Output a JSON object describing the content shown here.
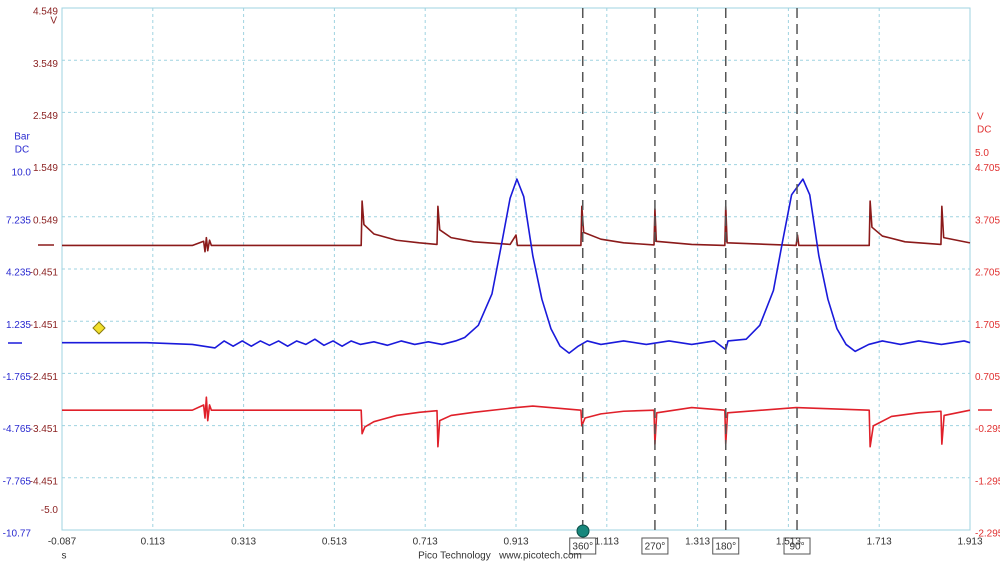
{
  "chart_data": {
    "type": "line",
    "xlabel": "s",
    "footer": "Pico Technology   www.picotech.com",
    "grid": true,
    "xlim": [
      -0.087,
      1.913
    ],
    "xticks": [
      -0.087,
      0.113,
      0.313,
      0.513,
      0.713,
      0.913,
      1.113,
      1.313,
      1.513,
      1.713,
      1.913
    ],
    "ylabel": "V",
    "ylim": [
      -5.451,
      4.549
    ],
    "yticks": [
      4.549,
      3.549,
      2.549,
      1.549,
      0.549,
      -0.451,
      -1.451,
      -2.451,
      -3.451,
      -4.451,
      {
        "value": -5,
        "label": "-5.0"
      }
    ],
    "y2label": "Bar",
    "y2coupling": "DC",
    "y2lim": [
      -10.765,
      19.235
    ],
    "y2ticks": [
      {
        "value": 10,
        "label": "10.0"
      },
      7.235,
      4.235,
      1.235,
      -1.765,
      -4.765,
      -7.765,
      {
        "value": -10.765,
        "label": "-10.77"
      }
    ],
    "y3label": "V",
    "y3coupling": "DC",
    "y3lim": [
      -2.295,
      7.705
    ],
    "y3ticks": [
      {
        "value": 5,
        "label": "5.0"
      },
      4.705,
      3.705,
      2.705,
      1.705,
      0.705,
      -0.295,
      -1.295,
      -2.295
    ],
    "cursors": [
      {
        "label": "360°",
        "x": 1.06
      },
      {
        "label": "270°",
        "x": 1.219
      },
      {
        "label": "180°",
        "x": 1.375
      },
      {
        "label": "90°",
        "x": 1.532
      }
    ],
    "series": [
      {
        "color": "#8b1a1a",
        "axis": "y",
        "x": [
          -0.087,
          0.2,
          0.225,
          0.228,
          0.231,
          0.234,
          0.238,
          0.242,
          0.4,
          0.572,
          0.574,
          0.578,
          0.6,
          0.65,
          0.7,
          0.739,
          0.741,
          0.745,
          0.77,
          0.82,
          0.9,
          0.913,
          0.916,
          1.056,
          1.058,
          1.062,
          1.1,
          1.15,
          1.217,
          1.219,
          1.222,
          1.3,
          1.373,
          1.375,
          1.378,
          1.53,
          1.533,
          1.536,
          1.691,
          1.693,
          1.697,
          1.72,
          1.77,
          1.849,
          1.851,
          1.855,
          1.913
        ],
        "values": [
          0,
          0,
          0.08,
          -0.12,
          0.15,
          -0.1,
          0.1,
          0,
          0,
          0,
          0.85,
          0.4,
          0.22,
          0.1,
          0.05,
          0.02,
          0.75,
          0.3,
          0.15,
          0.07,
          0.02,
          0.2,
          0,
          0,
          0.75,
          0.25,
          0.12,
          0.05,
          0.01,
          0.7,
          0.08,
          0.02,
          0,
          0.75,
          0.05,
          0,
          0.2,
          0,
          0,
          0.85,
          0.35,
          0.18,
          0.07,
          0.02,
          0.75,
          0.15,
          0.05
        ]
      },
      {
        "color": "#1a1adb",
        "axis": "y2",
        "x": [
          -0.087,
          0.1,
          0.2,
          0.25,
          0.27,
          0.29,
          0.31,
          0.33,
          0.35,
          0.37,
          0.39,
          0.41,
          0.43,
          0.45,
          0.47,
          0.49,
          0.51,
          0.53,
          0.55,
          0.57,
          0.6,
          0.63,
          0.66,
          0.69,
          0.72,
          0.75,
          0.78,
          0.8,
          0.83,
          0.86,
          0.88,
          0.9,
          0.915,
          0.93,
          0.95,
          0.97,
          0.99,
          1.01,
          1.03,
          1.05,
          1.07,
          1.1,
          1.15,
          1.2,
          1.25,
          1.3,
          1.35,
          1.375,
          1.38,
          1.42,
          1.45,
          1.48,
          1.5,
          1.52,
          1.545,
          1.56,
          1.58,
          1.6,
          1.62,
          1.64,
          1.66,
          1.69,
          1.72,
          1.76,
          1.8,
          1.85,
          1.9,
          1.913
        ],
        "values": [
          0,
          0,
          -0.1,
          -0.3,
          0.1,
          -0.2,
          0.1,
          -0.2,
          0.1,
          -0.15,
          0.1,
          -0.2,
          0.1,
          -0.1,
          0.2,
          -0.15,
          0.1,
          -0.2,
          0.1,
          -0.1,
          0.05,
          -0.15,
          0.1,
          -0.1,
          0.05,
          -0.1,
          0.1,
          0.3,
          1.0,
          2.8,
          5.5,
          8.3,
          9.4,
          8.4,
          5,
          2.5,
          0.8,
          -0.2,
          -0.6,
          -0.2,
          0.1,
          -0.1,
          0.1,
          -0.1,
          0.1,
          -0.1,
          0.1,
          -0.4,
          0.1,
          0.2,
          1.0,
          3.0,
          5.8,
          8.5,
          9.4,
          8.5,
          5,
          2.5,
          0.8,
          -0.1,
          -0.5,
          -0.1,
          0.1,
          -0.1,
          0.1,
          -0.1,
          0.1,
          0
        ]
      },
      {
        "color": "#e0202a",
        "axis": "y3",
        "x": [
          -0.087,
          0.2,
          0.225,
          0.228,
          0.231,
          0.234,
          0.238,
          0.242,
          0.572,
          0.574,
          0.58,
          0.6,
          0.65,
          0.7,
          0.739,
          0.741,
          0.745,
          0.77,
          0.82,
          0.913,
          0.95,
          1.056,
          1.058,
          1.065,
          1.1,
          1.15,
          1.217,
          1.219,
          1.223,
          1.3,
          1.373,
          1.375,
          1.379,
          1.53,
          1.691,
          1.693,
          1.7,
          1.74,
          1.8,
          1.849,
          1.851,
          1.856,
          1.913
        ],
        "values": [
          0,
          0,
          0.1,
          -0.15,
          0.25,
          -0.2,
          0.1,
          0,
          0,
          -0.45,
          -0.32,
          -0.22,
          -0.1,
          -0.04,
          -0.01,
          -0.7,
          -0.2,
          -0.1,
          -0.04,
          0.05,
          0.08,
          0,
          -0.3,
          -0.15,
          -0.07,
          -0.02,
          0,
          -0.65,
          -0.05,
          0.05,
          0,
          -0.65,
          -0.05,
          0.05,
          0,
          -0.7,
          -0.3,
          -0.12,
          -0.05,
          -0.02,
          -0.65,
          -0.1,
          0
        ]
      }
    ]
  }
}
